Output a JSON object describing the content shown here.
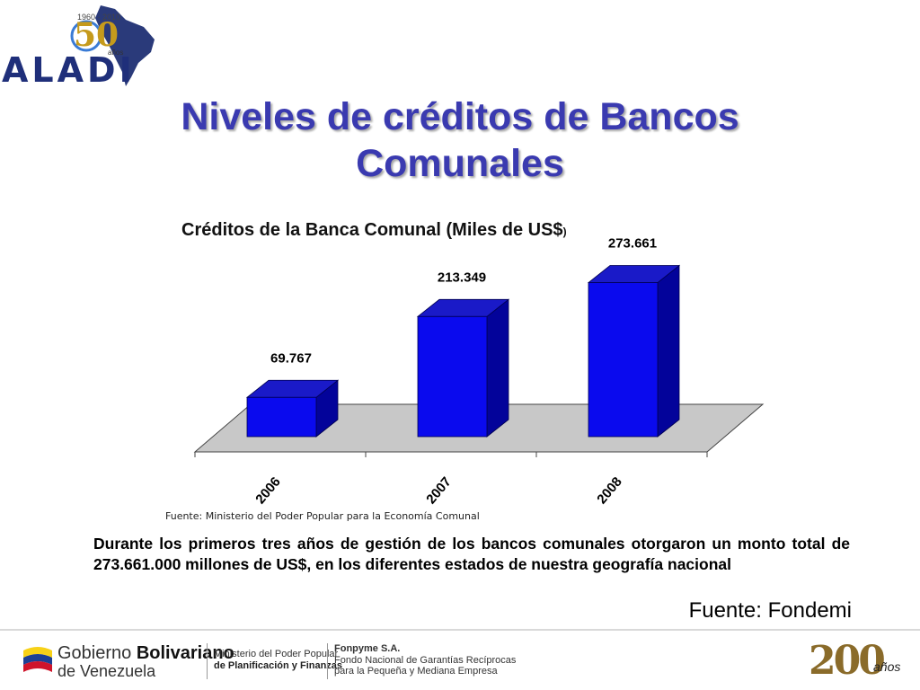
{
  "logo": {
    "name": "ALADI",
    "years": "1960 · 2010",
    "fifty": "50",
    "anos": "años"
  },
  "slide": {
    "title": "Niveles de créditos de Bancos Comunales",
    "source_note": "Fuente: Ministerio del Poder Popular para la Economía Comunal",
    "body": "Durante los primeros tres años de gestión de los bancos comunales otorgaron un monto total de 273.661.000 millones de US$, en los diferentes estados de nuestra geografía nacional",
    "fuente": "Fuente: Fondemi"
  },
  "chart_data": {
    "type": "bar",
    "title": "Créditos de  la Banca Comunal (Miles de US$",
    "title_suffix": ")",
    "categories": [
      "2006",
      "2007",
      "2008"
    ],
    "values": [
      69767,
      213349,
      273661
    ],
    "data_labels": [
      "69.767",
      "213.349",
      "273.661"
    ],
    "ylim": [
      0,
      300000
    ],
    "grid": false,
    "style": "3d",
    "colors": {
      "bar_front": "#0a0aee",
      "bar_top": "#1a1ac8",
      "bar_side": "#03039a",
      "floor": "#c8c8c8"
    }
  },
  "footer": {
    "gob_line1_a": "Gobierno ",
    "gob_line1_b": "Bolivariano",
    "gob_line2": "de Venezuela",
    "min_line1": "Ministerio del Poder Popular",
    "min_line2": "de Planificación y Finanzas",
    "fon_line1": "Fonpyme S.A.",
    "fon_line2": "Fondo Nacional de Garantías Recíprocas",
    "fon_line3": "para la Pequeña y Mediana Empresa",
    "bicent_num": "200",
    "bicent_anos": "años"
  }
}
